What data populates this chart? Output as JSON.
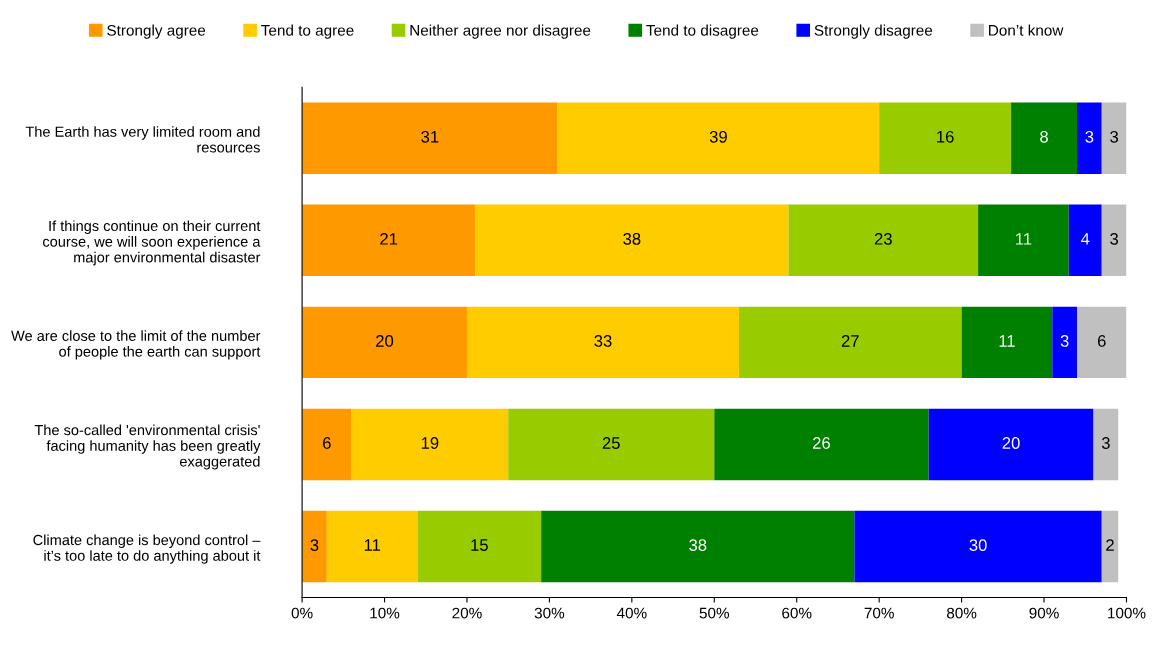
{
  "chart_data": {
    "type": "bar",
    "orientation": "horizontal",
    "stacked": true,
    "data_labels": true,
    "legend": "top",
    "grid": false,
    "categories": [
      "The Earth has very limited room and\nresources",
      "If things continue on their current\ncourse, we will soon experience a\nmajor environmental disaster",
      "We are close to the limit of the number\nof people the earth can support",
      "The so-called 'environmental crisis'\nfacing humanity has been greatly\nexaggerated",
      "Climate change is beyond control –\nit’s too late to do anything about it"
    ],
    "xlim": [
      0,
      100
    ],
    "xticks": [
      {
        "value": 0,
        "label": "0%"
      },
      {
        "value": 10,
        "label": "10%"
      },
      {
        "value": 20,
        "label": "20%"
      },
      {
        "value": 30,
        "label": "30%"
      },
      {
        "value": 40,
        "label": "40%"
      },
      {
        "value": 50,
        "label": "50%"
      },
      {
        "value": 60,
        "label": "60%"
      },
      {
        "value": 70,
        "label": "70%"
      },
      {
        "value": 80,
        "label": "80%"
      },
      {
        "value": 90,
        "label": "90%"
      },
      {
        "value": 100,
        "label": "100%"
      }
    ],
    "series": [
      {
        "name": "Strongly agree",
        "color": "#ff9900",
        "values": [
          31,
          21,
          20,
          6,
          3
        ]
      },
      {
        "name": "Tend to agree",
        "color": "#ffcc00",
        "values": [
          39,
          38,
          33,
          19,
          11
        ]
      },
      {
        "name": "Neither agree nor disagree",
        "color": "#99cc00",
        "values": [
          16,
          23,
          27,
          25,
          15
        ]
      },
      {
        "name": "Tend to disagree",
        "color": "#008000",
        "values": [
          8,
          11,
          11,
          26,
          38
        ]
      },
      {
        "name": "Strongly disagree",
        "color": "#0000ff",
        "values": [
          3,
          4,
          3,
          20,
          30
        ]
      },
      {
        "name": "Don’t know",
        "color": "#c0c0c0",
        "values": [
          3,
          3,
          6,
          3,
          2
        ]
      }
    ]
  }
}
